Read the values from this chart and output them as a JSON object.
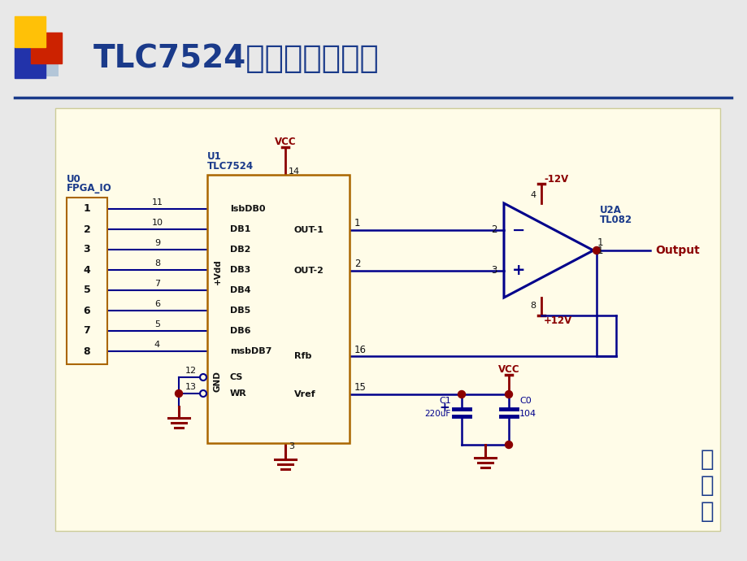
{
  "title": "TLC7524接口电路设计图",
  "slide_bg": "#E8E8E8",
  "circuit_bg": "#FFFCE8",
  "title_color": "#1a3a8a",
  "lc": "#00008B",
  "lb": "#1a3a8a",
  "lr": "#8B0000",
  "bk": "#111111",
  "sq1": "#FFC107",
  "sq2": "#CC2200",
  "sq3": "#2233AA",
  "sq4": "#88AACC",
  "jiexiaye": "接下页",
  "fpga_label1": "U0",
  "fpga_label2": "FPGA_IO",
  "tlc_label1": "U1",
  "tlc_label2": "TLC7524",
  "oa_label1": "U2A",
  "oa_label2": "TL082",
  "vdd_text": "+Vdd",
  "gnd_text": "GND",
  "db_labels": [
    "lsbDB0",
    "DB1",
    "DB2",
    "DB3",
    "DB4",
    "DB5",
    "DB6",
    "msbDB7"
  ],
  "db_nums": [
    "11",
    "10",
    "9",
    "8",
    "7",
    "6",
    "5",
    "4"
  ],
  "output_text": "Output"
}
